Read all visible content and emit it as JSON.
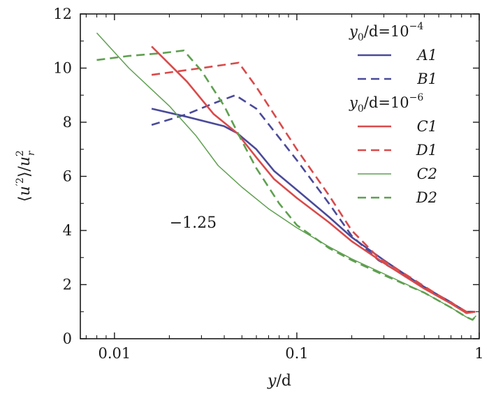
{
  "chart_data": {
    "type": "line",
    "x_scale": "log",
    "xlim": [
      0.0065,
      1.0
    ],
    "ylim": [
      0,
      12
    ],
    "grid": false,
    "xlabel": {
      "var": "y",
      "rest": "/d"
    },
    "ylabel": {
      "open": "⟨",
      "var": "u",
      "sup": "′2",
      "close": "⟩/",
      "var2": "u",
      "var2_sup": "2",
      "var2_sub": "r"
    },
    "x_ticks": [
      {
        "value": 0.01,
        "label": "0.01"
      },
      {
        "value": 0.1,
        "label": "0.1"
      },
      {
        "value": 1,
        "label": "1"
      }
    ],
    "y_ticks": [
      {
        "value": 0,
        "label": "0"
      },
      {
        "value": 2,
        "label": "2"
      },
      {
        "value": 4,
        "label": "4"
      },
      {
        "value": 6,
        "label": "6"
      },
      {
        "value": 8,
        "label": "8"
      },
      {
        "value": 10,
        "label": "10"
      },
      {
        "value": 12,
        "label": "12"
      }
    ],
    "annotation": {
      "text": "−1.25",
      "x": 0.027,
      "y": 4.1
    },
    "legend": {
      "placement": "top-right",
      "groups": [
        {
          "header_var": "y",
          "header_sub": "0",
          "header_text": "/d=10",
          "header_exp": "−4",
          "entries": [
            "A1",
            "B1"
          ]
        },
        {
          "header_var": "y",
          "header_sub": "0",
          "header_text": "/d=10",
          "header_exp": "−6",
          "entries": [
            "C1",
            "D1",
            "C2",
            "D2"
          ]
        }
      ]
    },
    "series": [
      {
        "name": "A1",
        "color": "#4a4a9a",
        "dash": "solid",
        "width": 2.6,
        "points": [
          [
            0.016,
            8.5
          ],
          [
            0.025,
            8.2
          ],
          [
            0.04,
            7.85
          ],
          [
            0.047,
            7.6
          ],
          [
            0.06,
            7.0
          ],
          [
            0.075,
            6.2
          ],
          [
            0.1,
            5.5
          ],
          [
            0.15,
            4.5
          ],
          [
            0.2,
            3.75
          ],
          [
            0.3,
            2.9
          ],
          [
            0.5,
            1.9
          ],
          [
            0.7,
            1.35
          ],
          [
            0.85,
            0.95
          ],
          [
            0.95,
            1.0
          ]
        ]
      },
      {
        "name": "B1",
        "color": "#4a4a9a",
        "dash": "dashed",
        "width": 2.6,
        "points": [
          [
            0.016,
            7.9
          ],
          [
            0.025,
            8.3
          ],
          [
            0.035,
            8.7
          ],
          [
            0.046,
            9.0
          ],
          [
            0.06,
            8.5
          ],
          [
            0.1,
            6.6
          ],
          [
            0.15,
            5.0
          ],
          [
            0.2,
            3.8
          ],
          [
            0.28,
            2.9
          ],
          [
            0.4,
            2.3
          ],
          [
            0.6,
            1.6
          ],
          [
            0.85,
            1.0
          ],
          [
            0.95,
            1.0
          ]
        ]
      },
      {
        "name": "C1",
        "color": "#d94a4a",
        "dash": "solid",
        "width": 2.6,
        "points": [
          [
            0.016,
            10.8
          ],
          [
            0.025,
            9.5
          ],
          [
            0.035,
            8.3
          ],
          [
            0.047,
            7.6
          ],
          [
            0.06,
            6.7
          ],
          [
            0.075,
            5.9
          ],
          [
            0.1,
            5.2
          ],
          [
            0.15,
            4.3
          ],
          [
            0.2,
            3.6
          ],
          [
            0.3,
            2.8
          ],
          [
            0.5,
            1.85
          ],
          [
            0.7,
            1.3
          ],
          [
            0.85,
            0.95
          ],
          [
            0.95,
            1.0
          ]
        ]
      },
      {
        "name": "D1",
        "color": "#d94a4a",
        "dash": "dashed",
        "width": 2.6,
        "points": [
          [
            0.016,
            9.75
          ],
          [
            0.03,
            10.0
          ],
          [
            0.048,
            10.2
          ],
          [
            0.06,
            9.3
          ],
          [
            0.1,
            7.0
          ],
          [
            0.15,
            5.3
          ],
          [
            0.2,
            4.0
          ],
          [
            0.28,
            3.0
          ],
          [
            0.4,
            2.35
          ],
          [
            0.6,
            1.6
          ],
          [
            0.85,
            1.0
          ],
          [
            0.95,
            1.0
          ]
        ]
      },
      {
        "name": "C2",
        "color": "#5fa050",
        "dash": "solid",
        "width": 1.5,
        "points": [
          [
            0.008,
            11.3
          ],
          [
            0.012,
            10.0
          ],
          [
            0.02,
            8.6
          ],
          [
            0.028,
            7.5
          ],
          [
            0.037,
            6.4
          ],
          [
            0.05,
            5.6
          ],
          [
            0.07,
            4.8
          ],
          [
            0.1,
            4.1
          ],
          [
            0.15,
            3.4
          ],
          [
            0.2,
            2.95
          ],
          [
            0.3,
            2.4
          ],
          [
            0.5,
            1.7
          ],
          [
            0.7,
            1.15
          ],
          [
            0.85,
            0.8
          ],
          [
            0.92,
            0.7
          ],
          [
            0.96,
            0.85
          ]
        ]
      },
      {
        "name": "D2",
        "color": "#5fa050",
        "dash": "dashed",
        "width": 2.6,
        "points": [
          [
            0.008,
            10.3
          ],
          [
            0.012,
            10.45
          ],
          [
            0.018,
            10.55
          ],
          [
            0.024,
            10.65
          ],
          [
            0.03,
            9.9
          ],
          [
            0.04,
            8.6
          ],
          [
            0.05,
            7.3
          ],
          [
            0.06,
            6.3
          ],
          [
            0.08,
            5.0
          ],
          [
            0.1,
            4.2
          ],
          [
            0.15,
            3.35
          ],
          [
            0.2,
            2.9
          ],
          [
            0.3,
            2.35
          ],
          [
            0.5,
            1.7
          ],
          [
            0.7,
            1.15
          ],
          [
            0.85,
            0.8
          ],
          [
            0.92,
            0.7
          ],
          [
            0.96,
            0.85
          ]
        ]
      }
    ]
  }
}
